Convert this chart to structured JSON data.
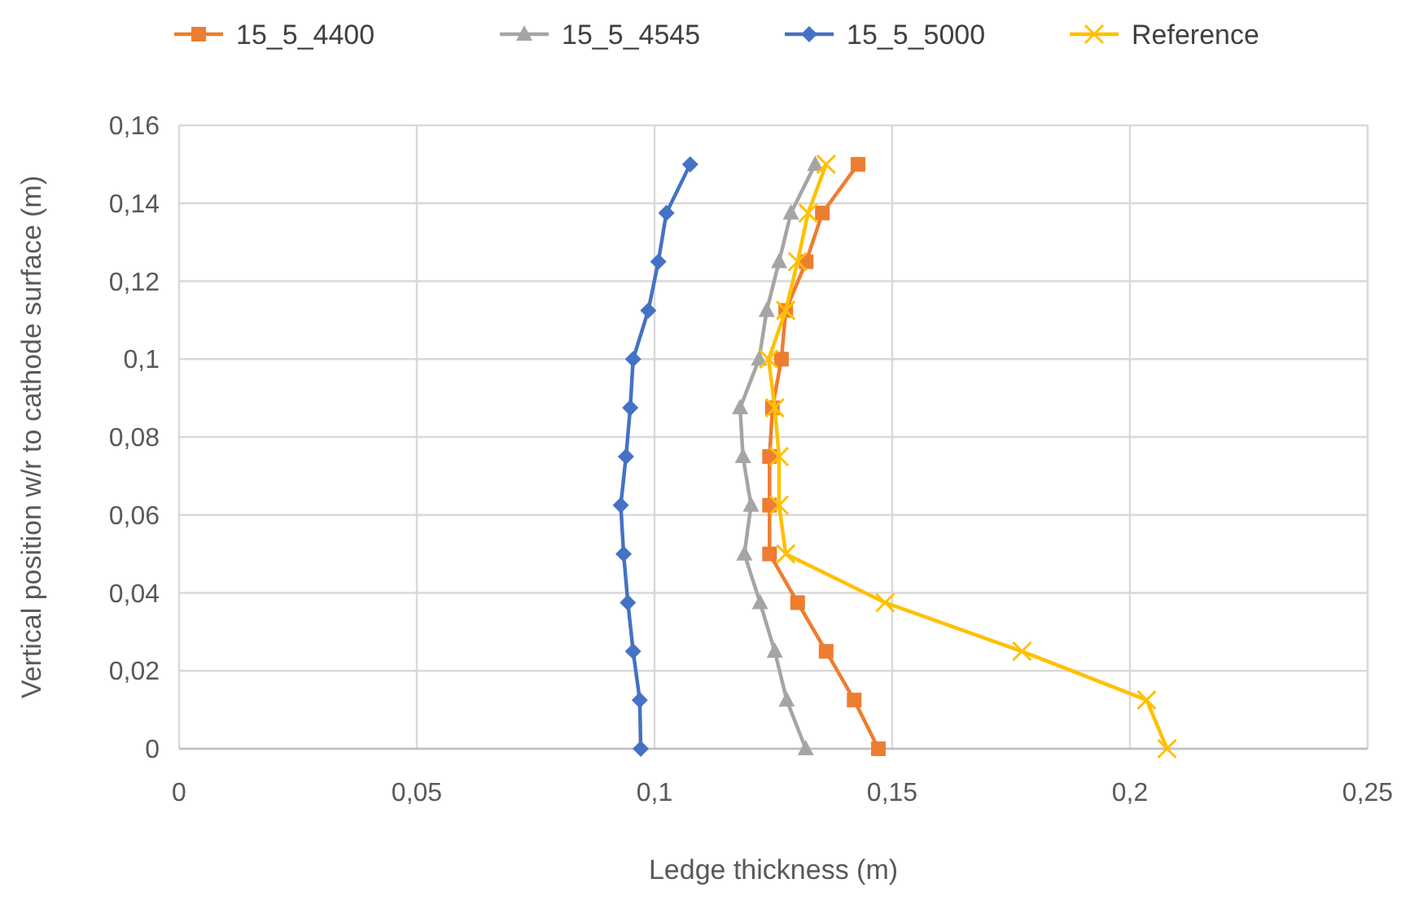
{
  "chart_data": {
    "type": "line",
    "xlabel": "Ledge thickness (m)",
    "ylabel": "Vertical position w/r to cathode surface (m)",
    "xlim": [
      0,
      0.25
    ],
    "xticks": [
      0,
      {
        "value": 0.05,
        "label": "0,05"
      },
      {
        "value": 0.1,
        "label": "0,1"
      },
      {
        "value": 0.15,
        "label": "0,15"
      },
      {
        "value": 0.2,
        "label": "0,2"
      },
      {
        "value": 0.25,
        "label": "0,25"
      }
    ],
    "ylim": [
      0,
      0.16
    ],
    "yticks": [
      0,
      {
        "value": 0.02,
        "label": "0,02"
      },
      {
        "value": 0.04,
        "label": "0,04"
      },
      {
        "value": 0.06,
        "label": "0,06"
      },
      {
        "value": 0.08,
        "label": "0,08"
      },
      {
        "value": 0.1,
        "label": "0,1"
      },
      {
        "value": 0.12,
        "label": "0,12"
      },
      {
        "value": 0.14,
        "label": "0,14"
      },
      {
        "value": 0.16,
        "label": "0,16"
      }
    ],
    "grid": true,
    "legend": "top",
    "line_style": "solid",
    "series": [
      {
        "name": "15_5_4400",
        "color": "#ed7d31",
        "marker": "square",
        "x": [
          0.1471,
          0.142,
          0.1361,
          0.1301,
          0.1242,
          0.1242,
          0.1242,
          0.1248,
          0.1267,
          0.1276,
          0.1319,
          0.1353,
          0.1428
        ],
        "values": [
          0,
          0.0125,
          0.025,
          0.0375,
          0.05,
          0.0625,
          0.075,
          0.0875,
          0.1,
          0.1125,
          0.125,
          0.1375,
          0.15
        ]
      },
      {
        "name": "15_5_4545",
        "color": "#a5a5a5",
        "marker": "triangle",
        "x": [
          0.1318,
          0.1278,
          0.1253,
          0.1222,
          0.1189,
          0.1203,
          0.1186,
          0.118,
          0.122,
          0.1236,
          0.1262,
          0.1287,
          0.1338
        ],
        "values": [
          0,
          0.0125,
          0.025,
          0.0375,
          0.05,
          0.0625,
          0.075,
          0.0875,
          0.1,
          0.1125,
          0.125,
          0.1375,
          0.15
        ]
      },
      {
        "name": "15_5_5000",
        "color": "#4472c4",
        "marker": "diamond",
        "x": [
          0.0971,
          0.0969,
          0.0955,
          0.0944,
          0.0935,
          0.0929,
          0.094,
          0.0949,
          0.0955,
          0.0987,
          0.1008,
          0.1025,
          0.1075
        ],
        "values": [
          0,
          0.0125,
          0.025,
          0.0375,
          0.05,
          0.0625,
          0.075,
          0.0875,
          0.1,
          0.1125,
          0.125,
          0.1375,
          0.15
        ]
      },
      {
        "name": "Reference",
        "color": "#ffc000",
        "marker": "cross",
        "x": [
          0.2078,
          0.2035,
          0.1773,
          0.1485,
          0.1276,
          0.1262,
          0.1262,
          0.1253,
          0.124,
          0.1276,
          0.1301,
          0.1323,
          0.1361
        ],
        "values": [
          0,
          0.0125,
          0.025,
          0.0375,
          0.05,
          0.0625,
          0.075,
          0.0875,
          0.1,
          0.1125,
          0.125,
          0.1375,
          0.15
        ]
      }
    ]
  }
}
